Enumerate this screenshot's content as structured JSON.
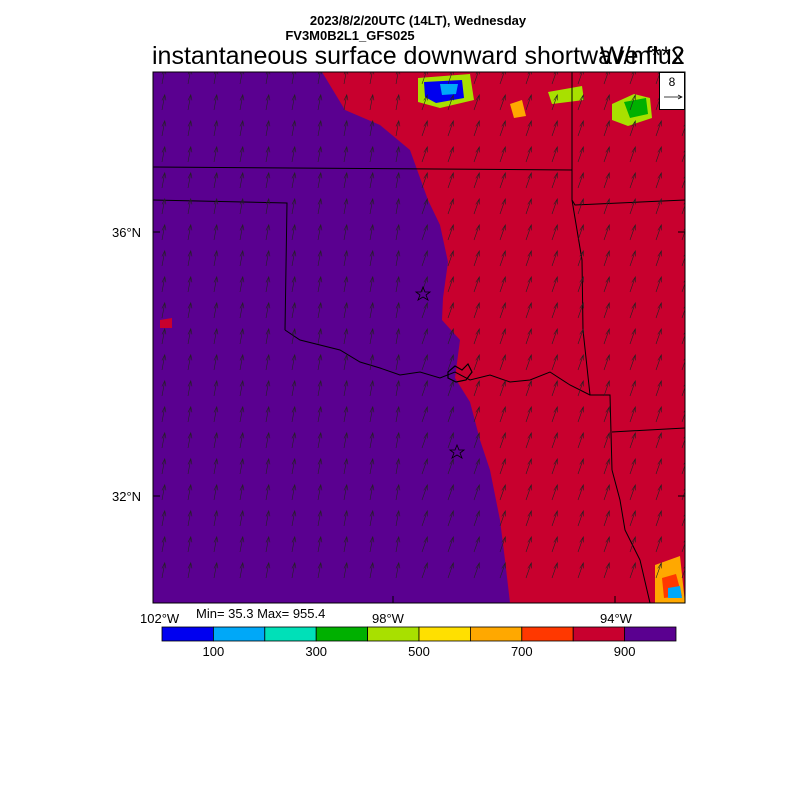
{
  "header": {
    "datetime": "2023/8/2/20UTC (14LT), Wednesday",
    "model": "FV3M0B2L1_GFS025"
  },
  "title": "instantaneous surface downward shortwave flux",
  "units": "W/m**2",
  "stats": "Min= 35.3 Max= 955.4",
  "reference_vector": {
    "value": "8"
  },
  "axes": {
    "lat_labels": [
      "36°N",
      "32°N"
    ],
    "lon_labels": [
      "102°W",
      "98°W",
      "94°W"
    ]
  },
  "colorbar": {
    "colors": [
      "#0000f0",
      "#00a8f8",
      "#00e0b8",
      "#00b000",
      "#a8e000",
      "#ffe000",
      "#ffa800",
      "#ff3800",
      "#c8002e",
      "#5a0090"
    ],
    "tick_labels": [
      "100",
      "300",
      "500",
      "700",
      "900"
    ]
  },
  "colors": {
    "low_flux_region": "#5a0090",
    "high_flux_region": "#c8002e"
  }
}
